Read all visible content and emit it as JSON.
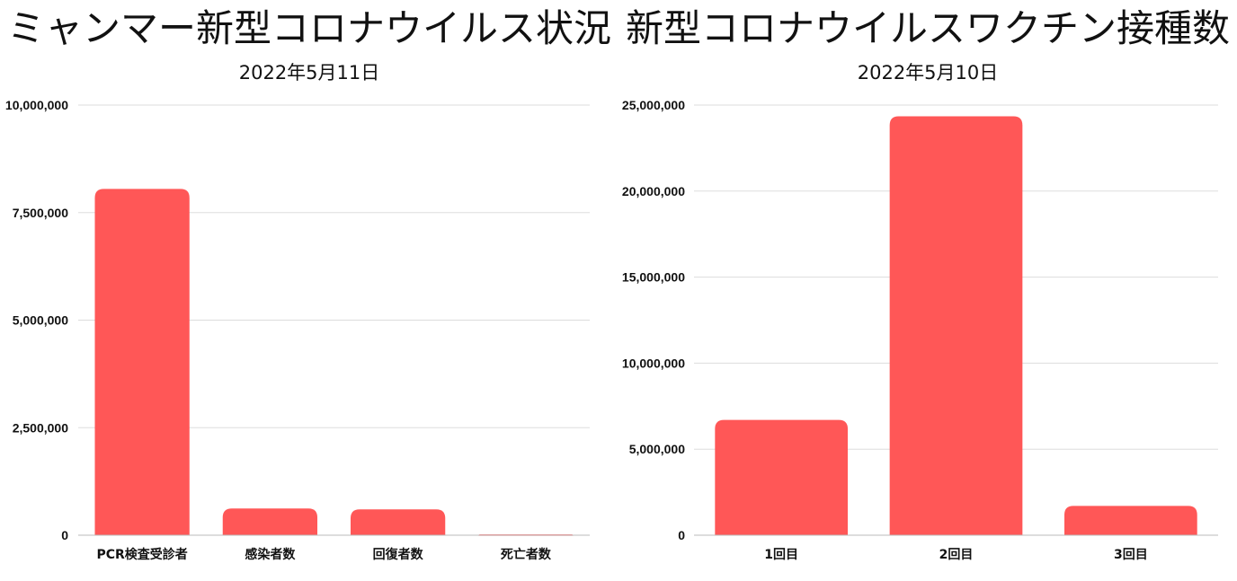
{
  "colors": {
    "bar": "#ff5757",
    "grid": "#dddddd",
    "baseline": "#bbbbbb"
  },
  "chart_data": [
    {
      "type": "bar",
      "title": "ミャンマー新型コロナウイルス状況",
      "subtitle": "2022年5月11日",
      "categories": [
        "PCR検査受診者",
        "感染者数",
        "回復者数",
        "死亡者数"
      ],
      "values": [
        8050000,
        620000,
        600000,
        19000
      ],
      "ylim": [
        0,
        10000000
      ],
      "yticks": [
        0,
        2500000,
        5000000,
        7500000,
        10000000
      ],
      "ytick_labels": [
        "0",
        "2,500,000",
        "5,000,000",
        "7,500,000",
        "10,000,000"
      ],
      "xlabel": "",
      "ylabel": "",
      "grid": true,
      "legend": "none"
    },
    {
      "type": "bar",
      "title": "新型コロナウイルスワクチン接種数",
      "subtitle": "2022年5月10日",
      "categories": [
        "1回目",
        "2回目",
        "3回目"
      ],
      "values": [
        6700000,
        24350000,
        1700000
      ],
      "ylim": [
        0,
        25000000
      ],
      "yticks": [
        0,
        5000000,
        10000000,
        15000000,
        20000000,
        25000000
      ],
      "ytick_labels": [
        "0",
        "5,000,000",
        "10,000,000",
        "15,000,000",
        "20,000,000",
        "25,000,000"
      ],
      "xlabel": "",
      "ylabel": "",
      "grid": true,
      "legend": "none"
    }
  ]
}
